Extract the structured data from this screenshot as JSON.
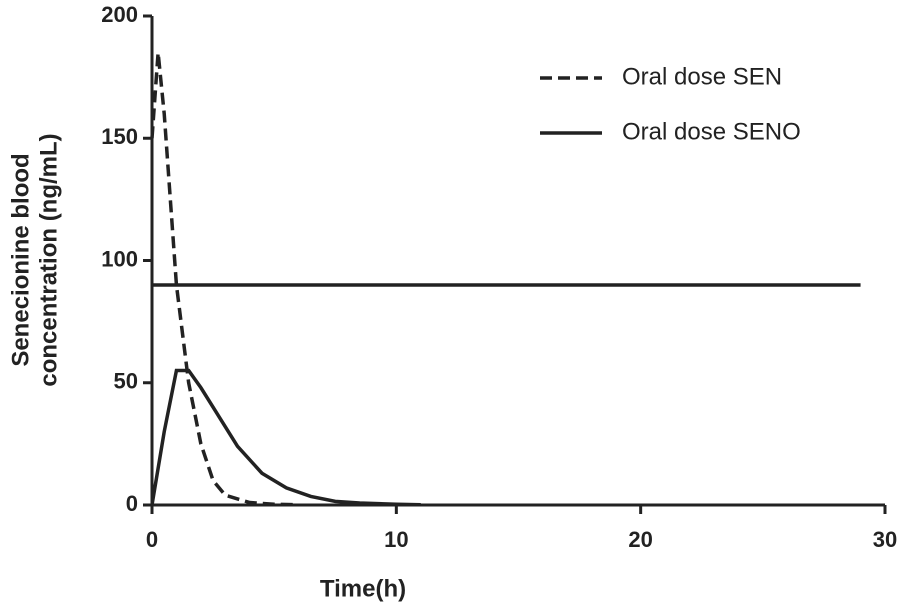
{
  "chart_data": {
    "type": "line",
    "xlabel": "Time(h)",
    "ylabel": [
      "Senecionine blood",
      "concentration (ng/mL)"
    ],
    "xlim": [
      0,
      30
    ],
    "xticks": [
      0,
      10,
      20,
      30
    ],
    "ylim": [
      0,
      200
    ],
    "yticks": [
      0,
      50,
      100,
      150,
      200
    ],
    "grid": false,
    "legend": "top-right",
    "series": [
      {
        "name": "Oral dose SEN",
        "color": "#222222",
        "dash": true,
        "x": [
          0,
          0.25,
          0.5,
          1,
          1.5,
          2,
          2.5,
          3,
          4,
          5,
          6
        ],
        "values": [
          150,
          185,
          160,
          90,
          50,
          25,
          10,
          4,
          1,
          0.3,
          0.1
        ]
      },
      {
        "name": "Oral dose SENO",
        "color": "#222222",
        "dash": false,
        "x": [
          0,
          0.5,
          1,
          1.5,
          2,
          2.5,
          3.5,
          4.5,
          5.5,
          6.5,
          7.5,
          8.5,
          10,
          11
        ],
        "values": [
          0,
          30,
          55,
          55,
          48,
          40,
          24,
          13,
          7,
          3.5,
          1.5,
          0.8,
          0.3,
          0.1
        ]
      },
      {
        "color": "#222222",
        "dash": false,
        "x": [
          0,
          29
        ],
        "values": [
          90,
          90
        ]
      }
    ]
  }
}
